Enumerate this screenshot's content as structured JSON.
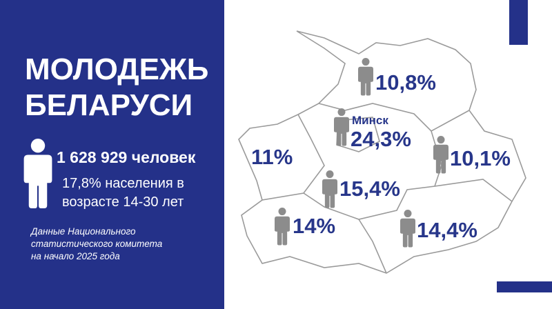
{
  "header": {
    "title_lines": [
      "МОЛОДЕЖЬ",
      "БЕЛАРУСИ"
    ]
  },
  "summary": {
    "total": "1 628 929 человек",
    "share_lines": [
      "17,8% населения в",
      "возрасте 14-30 лет"
    ]
  },
  "source_lines": [
    "Данные Национального",
    "статистического комитета",
    "на начало 2025 года"
  ],
  "regions": [
    {
      "value": "10,8%"
    },
    {
      "name": "Минск",
      "value": "24,3%"
    },
    {
      "value": "11%"
    },
    {
      "value": "10,1%"
    },
    {
      "value": "15,4%"
    },
    {
      "value": "14%"
    },
    {
      "value": "14,4%"
    }
  ]
}
